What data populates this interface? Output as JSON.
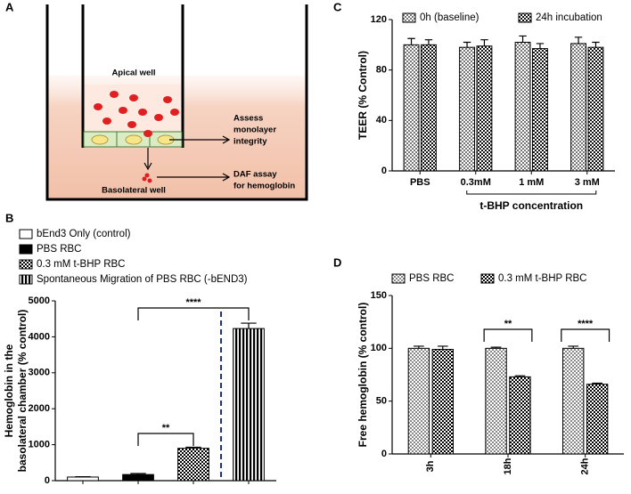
{
  "diagram": {
    "label": "A",
    "apical": "Apical well",
    "monolayer": [
      "Assess",
      "monolayer",
      "integrity"
    ],
    "daf": [
      "DAF assay",
      "for hemoglobin"
    ],
    "basolateral": "Basolateral well"
  },
  "chart_data": [
    {
      "type": "bar",
      "label": "B",
      "ylabel": [
        "Hemoglobin in the",
        "basolateral chamber (% control)"
      ],
      "categories": [
        null,
        null,
        null,
        null
      ],
      "series": [
        {
          "name": "bEnd3 Only (control)",
          "color": "#ffffff",
          "pattern": "solid",
          "values": [
            100,
            null,
            null,
            null
          ],
          "errors": [
            10,
            null,
            null,
            null
          ]
        },
        {
          "name": "PBS RBC",
          "color": "#000000",
          "pattern": "solid",
          "values": [
            null,
            170,
            null,
            null
          ],
          "errors": [
            null,
            30,
            null,
            null
          ]
        },
        {
          "name": "0.3 mM t-BHP RBC",
          "color": "#000000",
          "pattern": "checker",
          "values": [
            null,
            null,
            900,
            null
          ],
          "errors": [
            null,
            null,
            30,
            null
          ]
        },
        {
          "name": "Spontaneous Migration of PBS RBC (-bEND3)",
          "color": "#000000",
          "pattern": "vstripe",
          "values": [
            null,
            null,
            null,
            4230
          ],
          "errors": [
            null,
            null,
            null,
            150
          ]
        }
      ],
      "ylim": [
        0,
        5000
      ],
      "yticks": [
        0,
        1000,
        2000,
        3000,
        4000,
        5000
      ],
      "legend": "top-left",
      "annotations": [
        "**",
        "****"
      ]
    },
    {
      "type": "bar",
      "label": "C",
      "ylabel": [
        "TEER (% Control)"
      ],
      "xlabel": "t-BHP concentration",
      "categories": [
        "PBS",
        "0.3mM",
        "1 mM",
        "3 mM"
      ],
      "series": [
        {
          "name": "0h (baseline)",
          "color": "#777777",
          "pattern": "checker",
          "values": [
            100,
            98,
            102,
            101
          ],
          "errors": [
            5,
            4,
            5,
            5
          ]
        },
        {
          "name": "24h incubation",
          "color": "#111111",
          "pattern": "checker",
          "values": [
            100,
            99,
            97,
            98
          ],
          "errors": [
            4,
            5,
            4,
            4
          ]
        }
      ],
      "ylim": [
        0,
        120
      ],
      "yticks": [
        0,
        40,
        80,
        120
      ],
      "legend": "top"
    },
    {
      "type": "bar",
      "label": "D",
      "ylabel": [
        "Free hemoglobin (% control)"
      ],
      "categories": [
        "3h",
        "18h",
        "24h"
      ],
      "series": [
        {
          "name": "PBS RBC",
          "color": "#888888",
          "pattern": "checker",
          "values": [
            100,
            100,
            100
          ],
          "errors": [
            2,
            1,
            2
          ]
        },
        {
          "name": "0.3 mM t-BHP RBC",
          "color": "#000000",
          "pattern": "checker",
          "values": [
            99,
            73,
            66
          ],
          "errors": [
            3,
            1,
            1
          ]
        }
      ],
      "ylim": [
        0,
        150
      ],
      "yticks": [
        0,
        50,
        100,
        150
      ],
      "legend": "top",
      "annotations": [
        "**",
        "****"
      ]
    }
  ]
}
